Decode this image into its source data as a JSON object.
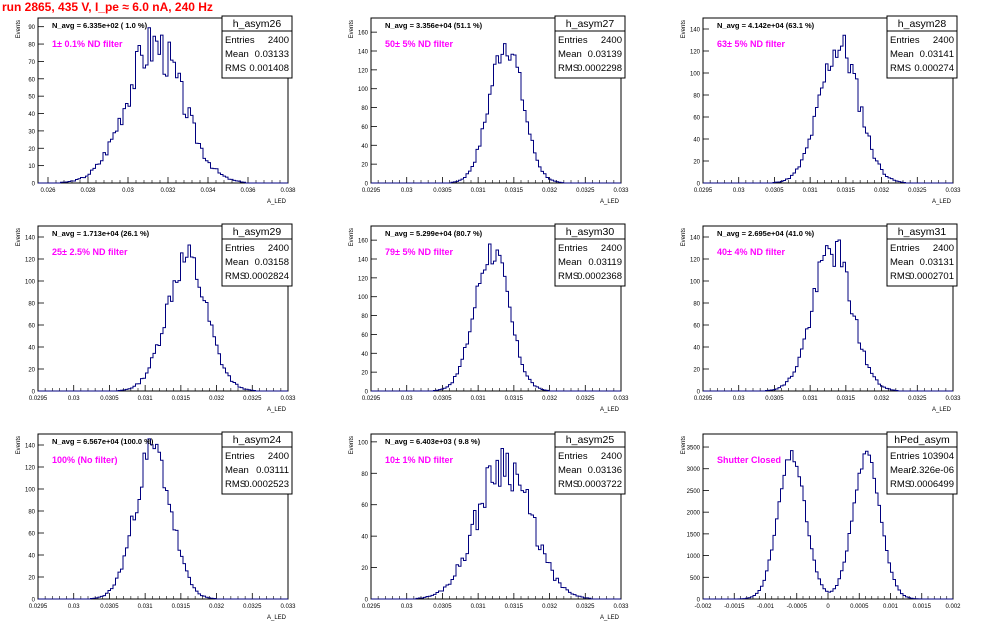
{
  "page_title": "run 2865,   435 V, I_pe ≈ 6.0 nA, 240 Hz",
  "colors": {
    "histogram": "#00007f",
    "annotation": "#ff00ff",
    "title": "#ff0000",
    "frame": "#000000"
  },
  "chart_data": [
    {
      "type": "histogram",
      "name": "h_asym26",
      "stats": {
        "entries": "2400",
        "mean": "0.03133",
        "rms": "0.001408"
      },
      "navg_text": "N_avg = 6.335e+02 ( 1.0 %)",
      "filter_text": "1± 0.1% ND filter",
      "ylabel": "Events",
      "xlabel": "A_LED",
      "xlim": [
        0.0255,
        0.038
      ],
      "ylim": [
        0,
        95
      ],
      "xticks": [
        0.026,
        0.028,
        0.03,
        0.032,
        0.034,
        0.036,
        0.038
      ],
      "xtick_labels": [
        "0.026",
        "0.028",
        "0.03",
        "0.032",
        "0.034",
        "0.036",
        "0.038"
      ],
      "yticks": [
        0,
        10,
        20,
        30,
        40,
        50,
        60,
        70,
        80,
        90
      ],
      "shape": {
        "kind": "gauss",
        "mu": 0.03133,
        "sigma": 0.001408,
        "peak": 80,
        "noise": 0.18,
        "seed": 3,
        "nbins": 100
      }
    },
    {
      "type": "histogram",
      "name": "h_asym27",
      "stats": {
        "entries": "2400",
        "mean": "0.03139",
        "rms": "0.0002298"
      },
      "navg_text": "N_avg = 3.356e+04 (51.1 %)",
      "filter_text": "50± 5% ND filter",
      "ylabel": "Events",
      "xlabel": "A_LED",
      "xlim": [
        0.0295,
        0.033
      ],
      "ylim": [
        0,
        175
      ],
      "xticks": [
        0.0295,
        0.03,
        0.0305,
        0.031,
        0.0315,
        0.032,
        0.0325,
        0.033
      ],
      "xtick_labels": [
        "0.0295",
        "0.03",
        "0.0305",
        "0.031",
        "0.0315",
        "0.032",
        "0.0325",
        "0.033"
      ],
      "yticks": [
        0,
        20,
        40,
        60,
        80,
        100,
        120,
        140,
        160
      ],
      "shape": {
        "kind": "gauss",
        "mu": 0.03139,
        "sigma": 0.0002298,
        "peak": 150,
        "noise": 0.12,
        "seed": 7,
        "nbins": 100
      }
    },
    {
      "type": "histogram",
      "name": "h_asym28",
      "stats": {
        "entries": "2400",
        "mean": "0.03141",
        "rms": "0.000274"
      },
      "navg_text": "N_avg = 4.142e+04 (63.1 %)",
      "filter_text": "63± 5% ND filter",
      "ylabel": "Events",
      "xlabel": "A_LED",
      "xlim": [
        0.0295,
        0.033
      ],
      "ylim": [
        0,
        150
      ],
      "xticks": [
        0.0295,
        0.03,
        0.0305,
        0.031,
        0.0315,
        0.032,
        0.0325,
        0.033
      ],
      "xtick_labels": [
        "0.0295",
        "0.03",
        "0.0305",
        "0.031",
        "0.0315",
        "0.032",
        "0.0325",
        "0.033"
      ],
      "yticks": [
        0,
        20,
        40,
        60,
        80,
        100,
        120,
        140
      ],
      "shape": {
        "kind": "gauss",
        "mu": 0.03141,
        "sigma": 0.000274,
        "peak": 125,
        "noise": 0.14,
        "seed": 11,
        "nbins": 100
      }
    },
    {
      "type": "histogram",
      "name": "h_asym29",
      "stats": {
        "entries": "2400",
        "mean": "0.03158",
        "rms": "0.0002824"
      },
      "navg_text": "N_avg = 1.713e+04 (26.1 %)",
      "filter_text": "25± 2.5% ND filter",
      "ylabel": "Events",
      "xlabel": "A_LED",
      "xlim": [
        0.0295,
        0.033
      ],
      "ylim": [
        0,
        150
      ],
      "xticks": [
        0.0295,
        0.03,
        0.0305,
        0.031,
        0.0315,
        0.032,
        0.0325,
        0.033
      ],
      "xtick_labels": [
        "0.0295",
        "0.03",
        "0.0305",
        "0.031",
        "0.0315",
        "0.032",
        "0.0325",
        "0.033"
      ],
      "yticks": [
        0,
        20,
        40,
        60,
        80,
        100,
        120,
        140
      ],
      "shape": {
        "kind": "gauss",
        "mu": 0.03158,
        "sigma": 0.0002824,
        "peak": 120,
        "noise": 0.14,
        "seed": 13,
        "nbins": 100
      }
    },
    {
      "type": "histogram",
      "name": "h_asym30",
      "stats": {
        "entries": "2400",
        "mean": "0.03119",
        "rms": "0.0002368"
      },
      "navg_text": "N_avg = 5.299e+04 (80.7 %)",
      "filter_text": "79± 5% ND filter",
      "ylabel": "Events",
      "xlabel": "A_LED",
      "xlim": [
        0.0295,
        0.033
      ],
      "ylim": [
        0,
        175
      ],
      "xticks": [
        0.0295,
        0.03,
        0.0305,
        0.031,
        0.0315,
        0.032,
        0.0325,
        0.033
      ],
      "xtick_labels": [
        "0.0295",
        "0.03",
        "0.0305",
        "0.031",
        "0.0315",
        "0.032",
        "0.0325",
        "0.033"
      ],
      "yticks": [
        0,
        20,
        40,
        60,
        80,
        100,
        120,
        140,
        160
      ],
      "shape": {
        "kind": "gauss",
        "mu": 0.03119,
        "sigma": 0.0002368,
        "peak": 150,
        "noise": 0.12,
        "seed": 17,
        "nbins": 100
      }
    },
    {
      "type": "histogram",
      "name": "h_asym31",
      "stats": {
        "entries": "2400",
        "mean": "0.03131",
        "rms": "0.0002701"
      },
      "navg_text": "N_avg = 2.695e+04 (41.0 %)",
      "filter_text": "40± 4% ND filter",
      "ylabel": "Events",
      "xlabel": "A_LED",
      "xlim": [
        0.0295,
        0.033
      ],
      "ylim": [
        0,
        150
      ],
      "xticks": [
        0.0295,
        0.03,
        0.0305,
        0.031,
        0.0315,
        0.032,
        0.0325,
        0.033
      ],
      "xtick_labels": [
        "0.0295",
        "0.03",
        "0.0305",
        "0.031",
        "0.0315",
        "0.032",
        "0.0325",
        "0.033"
      ],
      "yticks": [
        0,
        20,
        40,
        60,
        80,
        100,
        120,
        140
      ],
      "shape": {
        "kind": "gauss",
        "mu": 0.03131,
        "sigma": 0.0002701,
        "peak": 130,
        "noise": 0.14,
        "seed": 19,
        "nbins": 100
      }
    },
    {
      "type": "histogram",
      "name": "h_asym24",
      "stats": {
        "entries": "2400",
        "mean": "0.03111",
        "rms": "0.0002523"
      },
      "navg_text": "N_avg = 6.567e+04 (100.0 %)",
      "filter_text": "100% (No filter)",
      "ylabel": "Events",
      "xlabel": "A_LED",
      "xlim": [
        0.0295,
        0.033
      ],
      "ylim": [
        0,
        150
      ],
      "xticks": [
        0.0295,
        0.03,
        0.0305,
        0.031,
        0.0315,
        0.032,
        0.0325,
        0.033
      ],
      "xtick_labels": [
        "0.0295",
        "0.03",
        "0.0305",
        "0.031",
        "0.0315",
        "0.032",
        "0.0325",
        "0.033"
      ],
      "yticks": [
        0,
        20,
        40,
        60,
        80,
        100,
        120,
        140
      ],
      "shape": {
        "kind": "gauss",
        "mu": 0.03111,
        "sigma": 0.0002523,
        "peak": 135,
        "noise": 0.13,
        "seed": 23,
        "nbins": 100
      }
    },
    {
      "type": "histogram",
      "name": "h_asym25",
      "stats": {
        "entries": "2400",
        "mean": "0.03136",
        "rms": "0.0003722"
      },
      "navg_text": "N_avg = 6.403e+03 ( 9.8 %)",
      "filter_text": "10± 1% ND filter",
      "ylabel": "Events",
      "xlabel": "A_LED",
      "xlim": [
        0.0295,
        0.033
      ],
      "ylim": [
        0,
        105
      ],
      "xticks": [
        0.0295,
        0.03,
        0.0305,
        0.031,
        0.0315,
        0.032,
        0.0325,
        0.033
      ],
      "xtick_labels": [
        "0.0295",
        "0.03",
        "0.0305",
        "0.031",
        "0.0315",
        "0.032",
        "0.0325",
        "0.033"
      ],
      "yticks": [
        0,
        20,
        40,
        60,
        80,
        100
      ],
      "shape": {
        "kind": "gauss",
        "mu": 0.03136,
        "sigma": 0.0003722,
        "peak": 88,
        "noise": 0.18,
        "seed": 29,
        "nbins": 100
      }
    },
    {
      "type": "histogram",
      "name": "hPed_asym",
      "stats": {
        "entries": "103904",
        "mean": "2.326e-06",
        "rms": "0.0006499"
      },
      "navg_text": "",
      "filter_text": "Shutter Closed",
      "ylabel": "Events",
      "xlabel": "",
      "xlim": [
        -0.002,
        0.002
      ],
      "ylim": [
        0,
        3800
      ],
      "xticks": [
        -0.002,
        -0.0015,
        -0.001,
        -0.0005,
        0,
        0.0005,
        0.001,
        0.0015,
        0.002
      ],
      "xtick_labels": [
        "-0.002",
        "-0.0015",
        "-0.001",
        "-0.0005",
        "0",
        "0.0005",
        "0.001",
        "0.0015",
        "0.002"
      ],
      "yticks": [
        0,
        500,
        1000,
        1500,
        2000,
        2500,
        3000,
        3500
      ],
      "shape": {
        "kind": "double",
        "mu1": -0.00058,
        "mu2": 0.00062,
        "sigma": 0.00022,
        "peak": 3300,
        "base": 0,
        "noise": 0.04,
        "seed": 31,
        "nbins": 100
      }
    }
  ]
}
